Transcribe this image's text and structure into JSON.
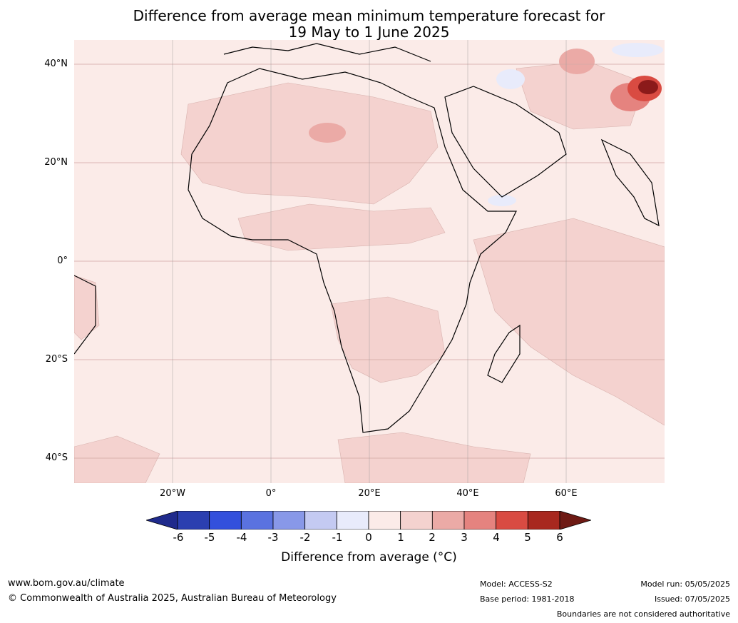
{
  "title_line1": "Difference from average mean minimum temperature forecast for",
  "title_line2": "19 May to 1 June 2025",
  "map": {
    "region": "Africa and western Indian Ocean",
    "lat_labels": [
      "40°N",
      "20°N",
      "0°",
      "20°S",
      "40°S"
    ],
    "lon_labels": [
      "20°W",
      "0°",
      "20°E",
      "40°E",
      "60°E"
    ],
    "background_anomaly_color": "#fbebe8",
    "warm_anomaly_color": "#f4d2cf",
    "hot_spot_color": "#8b1a1a",
    "cool_spot_color": "#e8ecfb"
  },
  "colorbar": {
    "ticks": [
      "-6",
      "-5",
      "-4",
      "-3",
      "-2",
      "-1",
      "0",
      "1",
      "2",
      "3",
      "4",
      "5",
      "6"
    ],
    "colors": [
      "#1f2a8c",
      "#2b3fb0",
      "#3350dc",
      "#5a72e0",
      "#8898e8",
      "#c4caf2",
      "#e8ebfb",
      "#fbebe8",
      "#f4d2cf",
      "#ebaaa6",
      "#e5837f",
      "#d94b42",
      "#a8281f",
      "#6e1a14"
    ],
    "label": "Difference from average (°C)"
  },
  "footer": {
    "website": "www.bom.gov.au/climate",
    "copyright": "© Commonwealth of Australia 2025, Australian Bureau of Meteorology",
    "model": "Model: ACCESS-S2",
    "base_period": "Base period: 1981-2018",
    "model_run": "Model run: 05/05/2025",
    "issued": "Issued: 07/05/2025",
    "disclaimer": "Boundaries are not considered authoritative"
  }
}
